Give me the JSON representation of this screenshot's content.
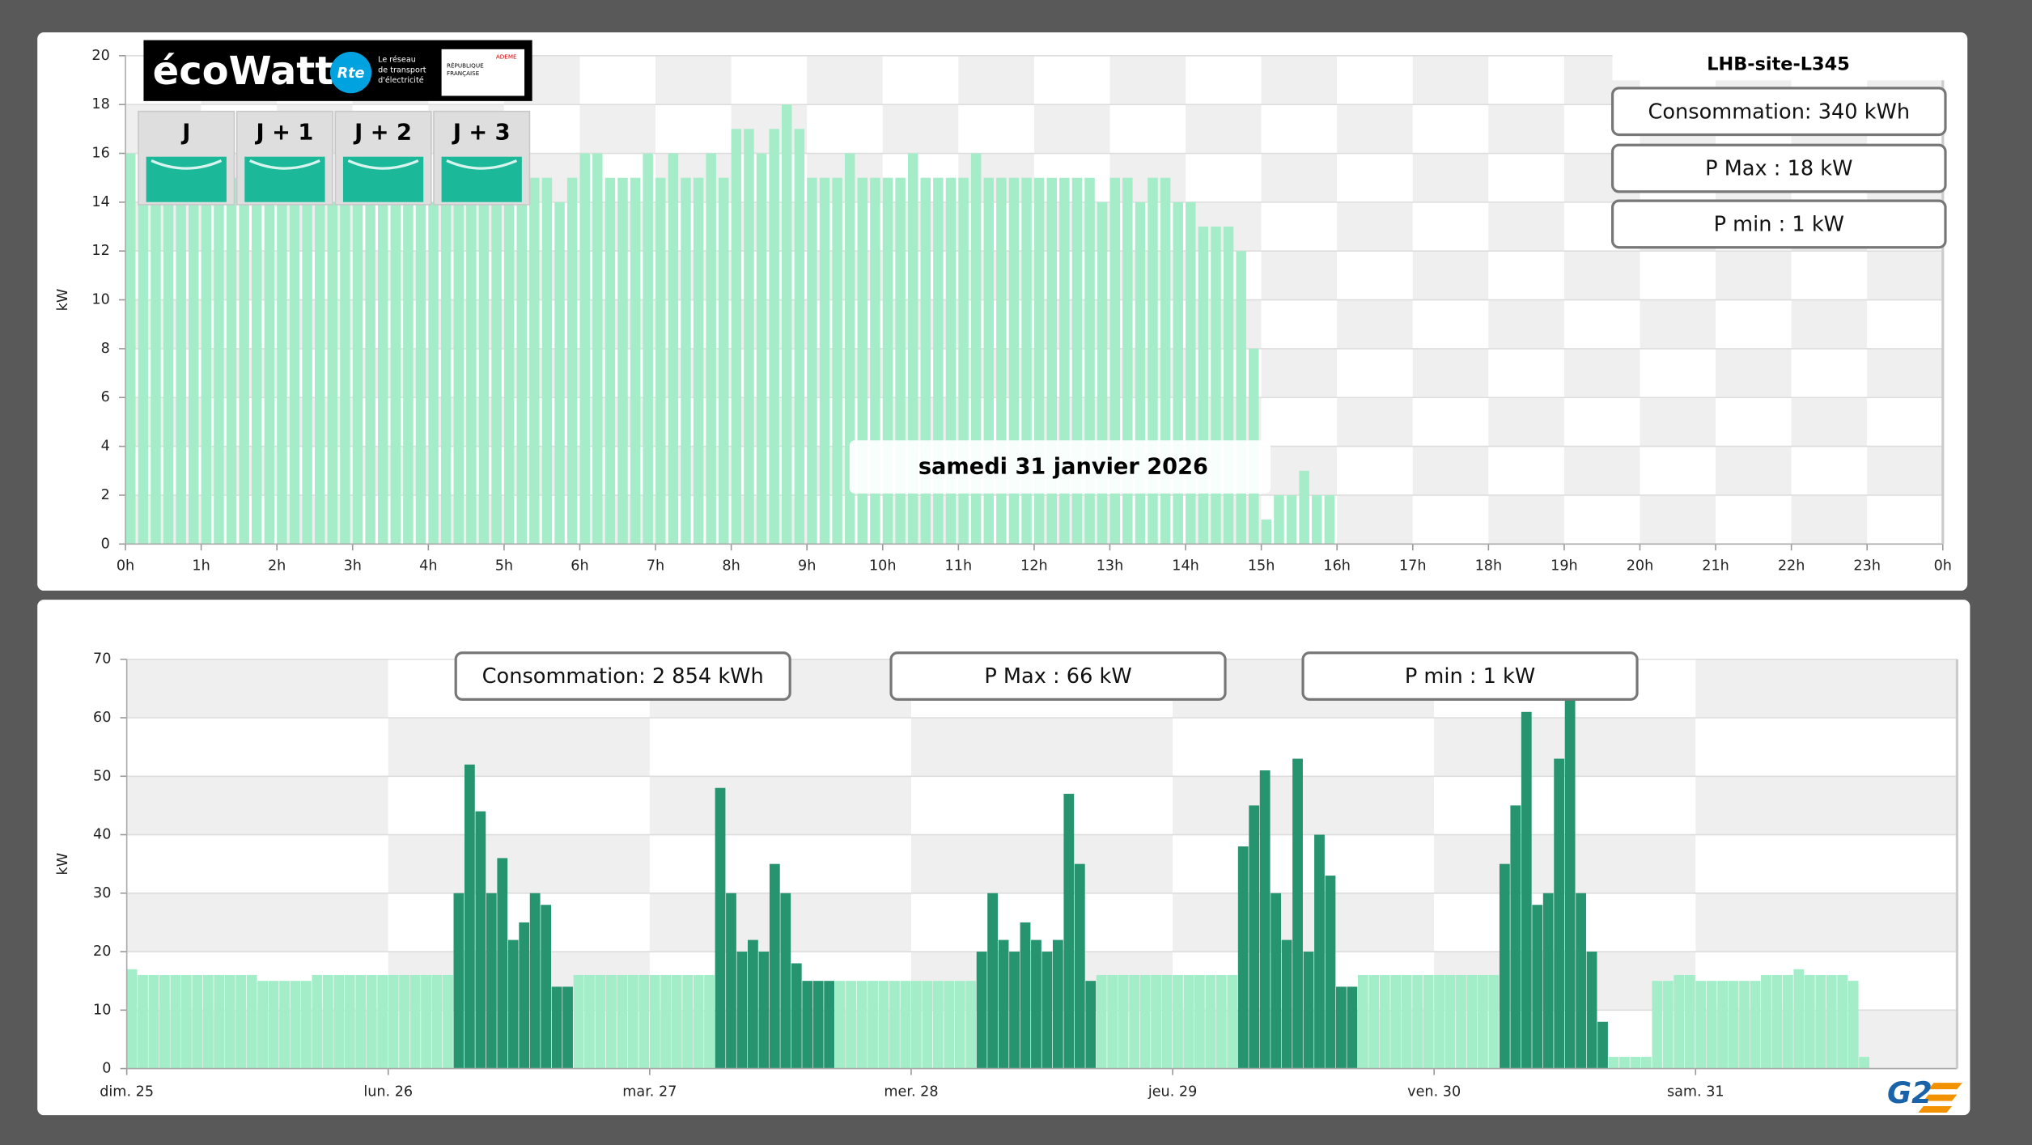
{
  "ecowatt": {
    "logo": "écoWatt",
    "rte": "Rte",
    "rte_tagline": [
      "Le réseau",
      "de transport",
      "d'électricité"
    ],
    "gov": [
      "RÉPUBLIQUE",
      "FRANÇAISE"
    ],
    "ademe": "ADEME",
    "days": [
      "J",
      "J + 1",
      "J + 2",
      "J + 3"
    ],
    "signal_color": "#1bb899"
  },
  "brand": "G2",
  "chart_data": [
    {
      "type": "bar",
      "title": "LHB-site-L345",
      "stats": [
        "Consommation: 340 kWh",
        "P Max :  18 kW",
        "P min : 1 kW"
      ],
      "annotation": "samedi 31 janvier 2026",
      "ylabel": "kW",
      "x": [
        0,
        10,
        20,
        30,
        40,
        50,
        60,
        70,
        80,
        90,
        100,
        110,
        120,
        130,
        140,
        150,
        160,
        170,
        180,
        190,
        200,
        210,
        220,
        230,
        240,
        250,
        260,
        270,
        280,
        290,
        300,
        310,
        320,
        330,
        340,
        350,
        360,
        370,
        380,
        390,
        400,
        410,
        420,
        430,
        440,
        450,
        460,
        470,
        480,
        490,
        500,
        510,
        520,
        530,
        540,
        550,
        560,
        570,
        580,
        590,
        600,
        610,
        620,
        630,
        640,
        650,
        660,
        670,
        680,
        690,
        700,
        710,
        720,
        730,
        740,
        750,
        760,
        770,
        780,
        790,
        800,
        810,
        820,
        830,
        840,
        850,
        860,
        870,
        880,
        890,
        900,
        910,
        920,
        930,
        940,
        950
      ],
      "values": [
        16,
        14,
        14,
        14,
        15,
        14,
        14,
        14,
        15,
        14,
        14,
        14,
        14,
        14,
        14,
        15,
        14,
        14,
        14,
        14,
        15,
        14,
        14,
        14,
        14,
        14,
        14,
        15,
        14,
        15,
        15,
        16,
        15,
        15,
        14,
        15,
        16,
        16,
        15,
        15,
        15,
        16,
        15,
        16,
        15,
        15,
        16,
        15,
        17,
        17,
        16,
        17,
        18,
        17,
        15,
        15,
        15,
        16,
        15,
        15,
        15,
        15,
        16,
        15,
        15,
        15,
        15,
        16,
        15,
        15,
        15,
        15,
        15,
        15,
        15,
        15,
        15,
        14,
        15,
        15,
        14,
        15,
        15,
        14,
        14,
        13,
        13,
        13,
        12,
        8,
        1,
        2,
        2,
        3,
        2,
        2
      ],
      "color": "#a5ecc8",
      "xlim": [
        0,
        1440
      ],
      "xticks": [
        {
          "value": 0,
          "label": "0h"
        },
        {
          "value": 60,
          "label": "1h"
        },
        {
          "value": 120,
          "label": "2h"
        },
        {
          "value": 180,
          "label": "3h"
        },
        {
          "value": 240,
          "label": "4h"
        },
        {
          "value": 300,
          "label": "5h"
        },
        {
          "value": 360,
          "label": "6h"
        },
        {
          "value": 420,
          "label": "7h"
        },
        {
          "value": 480,
          "label": "8h"
        },
        {
          "value": 540,
          "label": "9h"
        },
        {
          "value": 600,
          "label": "10h"
        },
        {
          "value": 660,
          "label": "11h"
        },
        {
          "value": 720,
          "label": "12h"
        },
        {
          "value": 780,
          "label": "13h"
        },
        {
          "value": 840,
          "label": "14h"
        },
        {
          "value": 900,
          "label": "15h"
        },
        {
          "value": 960,
          "label": "16h"
        },
        {
          "value": 1020,
          "label": "17h"
        },
        {
          "value": 1080,
          "label": "18h"
        },
        {
          "value": 1140,
          "label": "19h"
        },
        {
          "value": 1200,
          "label": "20h"
        },
        {
          "value": 1260,
          "label": "21h"
        },
        {
          "value": 1320,
          "label": "22h"
        },
        {
          "value": 1380,
          "label": "23h"
        },
        {
          "value": 1440,
          "label": "0h"
        }
      ],
      "ylim": [
        0,
        20
      ],
      "yticks": [
        0,
        2,
        4,
        6,
        8,
        10,
        12,
        14,
        16,
        18,
        20
      ],
      "grid": true
    },
    {
      "type": "bar",
      "stats": [
        "Consommation: 2 854 kWh",
        "P Max :  66 kW",
        "P min : 1 kW"
      ],
      "ylabel": "kW",
      "x": [
        0,
        1,
        2,
        3,
        4,
        5,
        6,
        7,
        8,
        9,
        10,
        11,
        12,
        13,
        14,
        15,
        16,
        17,
        18,
        19,
        20,
        21,
        22,
        23,
        24,
        25,
        26,
        27,
        28,
        29,
        30,
        31,
        32,
        33,
        34,
        35,
        36,
        37,
        38,
        39,
        40,
        41,
        42,
        43,
        44,
        45,
        46,
        47,
        48,
        49,
        50,
        51,
        52,
        53,
        54,
        55,
        56,
        57,
        58,
        59,
        60,
        61,
        62,
        63,
        64,
        65,
        66,
        67,
        68,
        69,
        70,
        71,
        72,
        73,
        74,
        75,
        76,
        77,
        78,
        79,
        80,
        81,
        82,
        83,
        84,
        85,
        86,
        87,
        88,
        89,
        90,
        91,
        92,
        93,
        94,
        95,
        96,
        97,
        98,
        99,
        100,
        101,
        102,
        103,
        104,
        105,
        106,
        107,
        108,
        109,
        110,
        111,
        112,
        113,
        114,
        115,
        116,
        117,
        118,
        119,
        120,
        121,
        122,
        123,
        124,
        125,
        126,
        127,
        128,
        129,
        130,
        131,
        132,
        133,
        134,
        135,
        136,
        137,
        138,
        139,
        140,
        141,
        142,
        143,
        144,
        145,
        146,
        147,
        148,
        149,
        150,
        151,
        152,
        153,
        154,
        155,
        156,
        157,
        158,
        159
      ],
      "series": [
        {
          "color": "#a3edc8",
          "values": [
            17,
            16,
            16,
            16,
            16,
            16,
            16,
            16,
            16,
            16,
            16,
            16,
            15,
            15,
            15,
            15,
            15,
            16,
            16,
            16,
            16,
            16,
            16,
            16,
            16,
            16,
            16,
            16,
            16,
            16,
            null,
            null,
            null,
            null,
            null,
            null,
            null,
            null,
            null,
            null,
            null,
            16,
            16,
            16,
            16,
            16,
            16,
            16,
            16,
            16,
            16,
            16,
            16,
            16,
            null,
            null,
            null,
            null,
            null,
            null,
            null,
            null,
            null,
            null,
            null,
            15,
            15,
            15,
            15,
            15,
            15,
            15,
            15,
            15,
            15,
            15,
            15,
            15,
            null,
            null,
            null,
            null,
            null,
            null,
            null,
            null,
            null,
            null,
            null,
            16,
            16,
            16,
            16,
            16,
            16,
            16,
            16,
            16,
            16,
            16,
            16,
            16,
            null,
            null,
            null,
            null,
            null,
            null,
            null,
            null,
            null,
            null,
            null,
            16,
            16,
            16,
            16,
            16,
            16,
            16,
            16,
            16,
            16,
            16,
            16,
            16,
            null,
            null,
            null,
            null,
            null,
            null,
            null,
            null,
            null,
            null,
            2,
            2,
            2,
            2,
            15,
            15,
            16,
            16,
            15,
            15,
            15,
            15,
            15,
            15,
            16,
            16,
            16,
            17,
            16,
            16,
            16,
            16,
            15,
            2
          ]
        },
        {
          "color": "#26956f",
          "values": [
            null,
            null,
            null,
            null,
            null,
            null,
            null,
            null,
            null,
            null,
            null,
            null,
            null,
            null,
            null,
            null,
            null,
            null,
            null,
            null,
            null,
            null,
            null,
            null,
            null,
            null,
            null,
            null,
            null,
            null,
            30,
            52,
            44,
            30,
            36,
            22,
            25,
            30,
            28,
            14,
            14,
            null,
            null,
            null,
            null,
            null,
            null,
            null,
            null,
            null,
            null,
            null,
            null,
            null,
            48,
            30,
            20,
            22,
            20,
            35,
            30,
            18,
            15,
            15,
            15,
            null,
            null,
            null,
            null,
            null,
            null,
            null,
            null,
            null,
            null,
            null,
            null,
            null,
            20,
            30,
            22,
            20,
            25,
            22,
            20,
            22,
            47,
            35,
            15,
            null,
            null,
            null,
            null,
            null,
            null,
            null,
            null,
            null,
            null,
            null,
            null,
            null,
            38,
            45,
            51,
            30,
            22,
            53,
            20,
            40,
            33,
            14,
            14,
            null,
            null,
            null,
            null,
            null,
            null,
            null,
            null,
            null,
            null,
            null,
            null,
            null,
            35,
            45,
            61,
            28,
            30,
            53,
            63,
            30,
            20,
            8,
            null,
            null,
            null,
            null,
            null,
            null,
            null,
            null,
            null,
            null,
            null,
            null,
            null,
            null,
            null,
            null,
            null,
            null,
            null,
            null,
            null,
            null,
            null,
            null
          ]
        }
      ],
      "xlim": [
        0,
        168
      ],
      "xticks": [
        {
          "value": 0,
          "label": "dim. 25"
        },
        {
          "value": 24,
          "label": "lun. 26"
        },
        {
          "value": 48,
          "label": "mar. 27"
        },
        {
          "value": 72,
          "label": "mer. 28"
        },
        {
          "value": 96,
          "label": "jeu. 29"
        },
        {
          "value": 120,
          "label": "ven. 30"
        },
        {
          "value": 144,
          "label": "sam. 31"
        }
      ],
      "ylim": [
        0,
        70
      ],
      "yticks": [
        0,
        10,
        20,
        30,
        40,
        50,
        60,
        70
      ],
      "grid": true
    }
  ]
}
